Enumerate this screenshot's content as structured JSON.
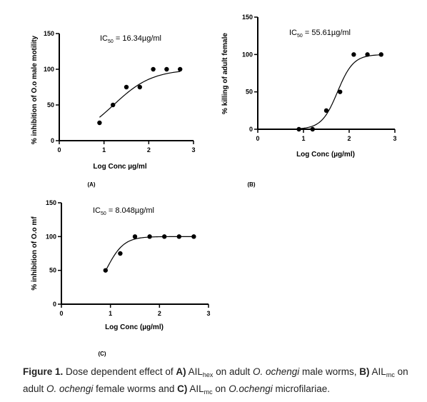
{
  "chart_data": [
    {
      "type": "scatter",
      "panel_label": "(A)",
      "ylabel": "% inhibition of O.o male motility",
      "xlabel": "Log Conc µg/ml",
      "ic50_prefix": "IC",
      "ic50_sub": "50",
      "ic50_value": " = 16.34µg/ml",
      "xlim": [
        0,
        3
      ],
      "ylim": [
        0,
        150
      ],
      "xticks": [
        0,
        1,
        2,
        3
      ],
      "yticks": [
        0,
        50,
        100,
        150
      ],
      "x": [
        0.9,
        1.2,
        1.5,
        1.8,
        2.1,
        2.4,
        2.7
      ],
      "y": [
        25,
        50,
        75,
        75,
        100,
        100,
        100
      ],
      "fit": {
        "bottom": 0,
        "top": 100,
        "log_ic50": 1.213,
        "hill": 1.0
      }
    },
    {
      "type": "scatter",
      "panel_label": "(B)",
      "ylabel": "% killing of adult female",
      "xlabel": "Log Conc (µg/ml)",
      "ic50_prefix": "IC",
      "ic50_sub": "50",
      "ic50_value": " = 55.61µg/ml",
      "xlim": [
        0,
        3
      ],
      "ylim": [
        0,
        150
      ],
      "xticks": [
        0,
        1,
        2,
        3
      ],
      "yticks": [
        0,
        50,
        100,
        150
      ],
      "x": [
        0.9,
        1.2,
        1.5,
        1.8,
        2.1,
        2.4,
        2.7
      ],
      "y": [
        0,
        0,
        25,
        50,
        100,
        100,
        100
      ],
      "fit": {
        "bottom": 0,
        "top": 100,
        "log_ic50": 1.745,
        "hill": 2.5
      }
    },
    {
      "type": "scatter",
      "panel_label": "(C)",
      "ylabel": "% inhibition of O.o mf",
      "xlabel": "Log Conc (µg/ml)",
      "ic50_prefix": "IC",
      "ic50_sub": "50",
      "ic50_value": " = 8.048µg/ml",
      "xlim": [
        0,
        3
      ],
      "ylim": [
        0,
        150
      ],
      "xticks": [
        0,
        1,
        2,
        3
      ],
      "yticks": [
        0,
        50,
        100,
        150
      ],
      "x": [
        0.9,
        1.2,
        1.5,
        1.8,
        2.1,
        2.4,
        2.7
      ],
      "y": [
        50,
        75,
        100,
        100,
        100,
        100,
        100
      ],
      "fit": {
        "bottom": 0,
        "top": 100,
        "log_ic50": 0.906,
        "hill": 2.4
      }
    }
  ],
  "caption": {
    "figure": "Figure 1.",
    "text_a": " Dose dependent effect of ",
    "label_a": "A)",
    "ail_a": " AIL",
    "sub_a": "hex",
    "text_b": " on adult ",
    "species_a": "O. ochengi",
    "text_c": " male worms, ",
    "label_b": "B)",
    "ail_b": " AIL",
    "sub_b": "mc",
    "text_d": " on adult ",
    "species_b": "O. ochengi",
    "text_e": " female worms and ",
    "label_c": "C)",
    "ail_c": " AIL",
    "sub_c": "mc",
    "text_f": " on ",
    "species_c": "O.ochengi",
    "text_g": " microfilariae."
  }
}
